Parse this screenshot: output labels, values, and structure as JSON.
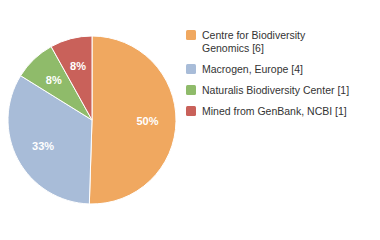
{
  "chart_data": {
    "type": "pie",
    "categories": [
      "Centre for Biodiversity\nGenomics [6]",
      "Macrogen, Europe [4]",
      "Naturalis Biodiversity Center [1]",
      "Mined from GenBank, NCBI [1]"
    ],
    "values": [
      50,
      33,
      8,
      8
    ],
    "value_labels": [
      "50%",
      "33%",
      "8%",
      "8%"
    ],
    "colors": [
      "#F0A860",
      "#A8BCD8",
      "#8FBB6A",
      "#C9615A"
    ],
    "data_labels": true,
    "legend": "right"
  }
}
